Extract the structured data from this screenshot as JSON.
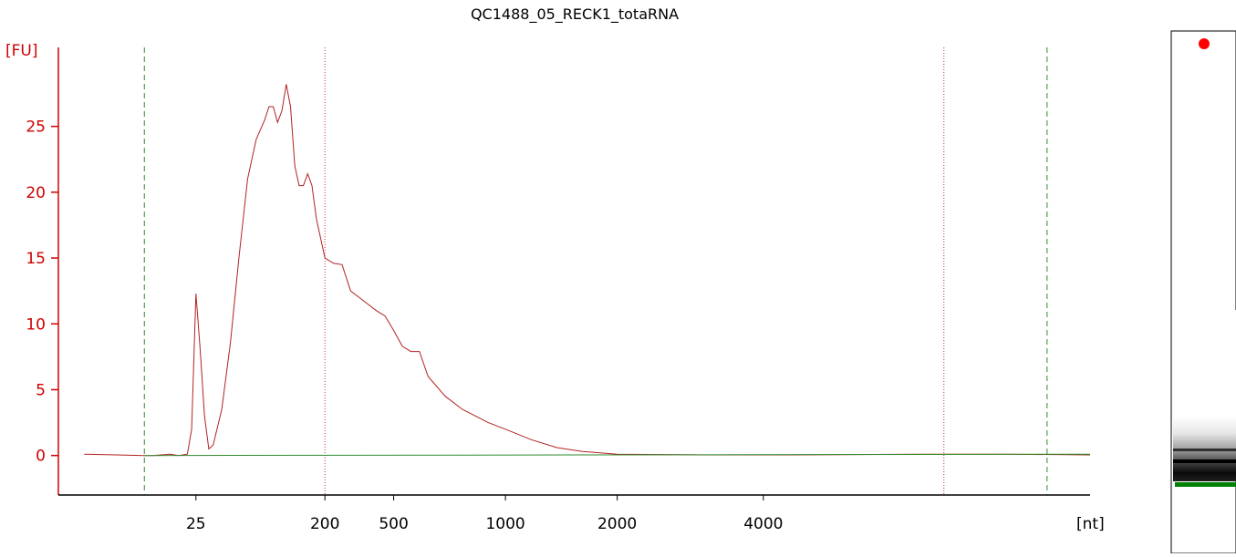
{
  "chart_data": {
    "type": "line",
    "title": "QC1488_05_RECK1_totaRNA",
    "ylabel": "[FU]",
    "xlabel": "[nt]",
    "ylim": [
      -3,
      31
    ],
    "grid": false,
    "y_ticks": [
      "0",
      "5",
      "10",
      "15",
      "20",
      "25"
    ],
    "x_ticks": [
      {
        "label": "25",
        "t": 41
      },
      {
        "label": "200",
        "t": 56
      },
      {
        "label": "500",
        "t": 64
      },
      {
        "label": "1000",
        "t": 77
      },
      {
        "label": "2000",
        "t": 90
      },
      {
        "label": "4000",
        "t": 107
      }
    ],
    "ladder_markers": [
      {
        "kind": "green-dashed",
        "t": 35
      },
      {
        "kind": "red-dotted",
        "t": 56
      },
      {
        "kind": "red-dotted",
        "t": 128
      },
      {
        "kind": "green-dashed",
        "t": 140
      }
    ],
    "series": [
      {
        "color": "#b22222",
        "points": [
          [
            28,
            0.1
          ],
          [
            35,
            0.0
          ],
          [
            36,
            0.0
          ],
          [
            38,
            0.1
          ],
          [
            39,
            0.0
          ],
          [
            40,
            0.1
          ],
          [
            40.5,
            2.0
          ],
          [
            41,
            12.3
          ],
          [
            41.5,
            8.0
          ],
          [
            42,
            3.0
          ],
          [
            42.5,
            0.5
          ],
          [
            43,
            0.8
          ],
          [
            44,
            3.5
          ],
          [
            45,
            8.5
          ],
          [
            46,
            15.0
          ],
          [
            47,
            21.0
          ],
          [
            48,
            24.0
          ],
          [
            49,
            25.5
          ],
          [
            49.5,
            26.5
          ],
          [
            50,
            26.5
          ],
          [
            50.5,
            25.3
          ],
          [
            51,
            26.2
          ],
          [
            51.5,
            28.2
          ],
          [
            52,
            26.5
          ],
          [
            52.5,
            22.0
          ],
          [
            53,
            20.5
          ],
          [
            53.5,
            20.5
          ],
          [
            54,
            21.4
          ],
          [
            54.5,
            20.5
          ],
          [
            55,
            18.0
          ],
          [
            56,
            15.0
          ],
          [
            57,
            14.6
          ],
          [
            58,
            14.5
          ],
          [
            59,
            12.5
          ],
          [
            60,
            12.0
          ],
          [
            61,
            11.5
          ],
          [
            62,
            11.0
          ],
          [
            63,
            10.6
          ],
          [
            64,
            9.5
          ],
          [
            65,
            8.3
          ],
          [
            66,
            7.9
          ],
          [
            67,
            7.9
          ],
          [
            68,
            6.0
          ],
          [
            70,
            4.5
          ],
          [
            72,
            3.5
          ],
          [
            75,
            2.5
          ],
          [
            77,
            2.0
          ],
          [
            80,
            1.2
          ],
          [
            83,
            0.6
          ],
          [
            86,
            0.3
          ],
          [
            90,
            0.1
          ],
          [
            100,
            0.05
          ],
          [
            110,
            0.05
          ],
          [
            125,
            0.1
          ],
          [
            135,
            0.1
          ],
          [
            145,
            0.05
          ]
        ]
      },
      {
        "color": "#2e8b2e",
        "points": [
          [
            35,
            0.0
          ],
          [
            145,
            0.1
          ]
        ]
      }
    ]
  },
  "gel": {
    "marker_color": "#ff0000",
    "band_color": "#008000"
  }
}
